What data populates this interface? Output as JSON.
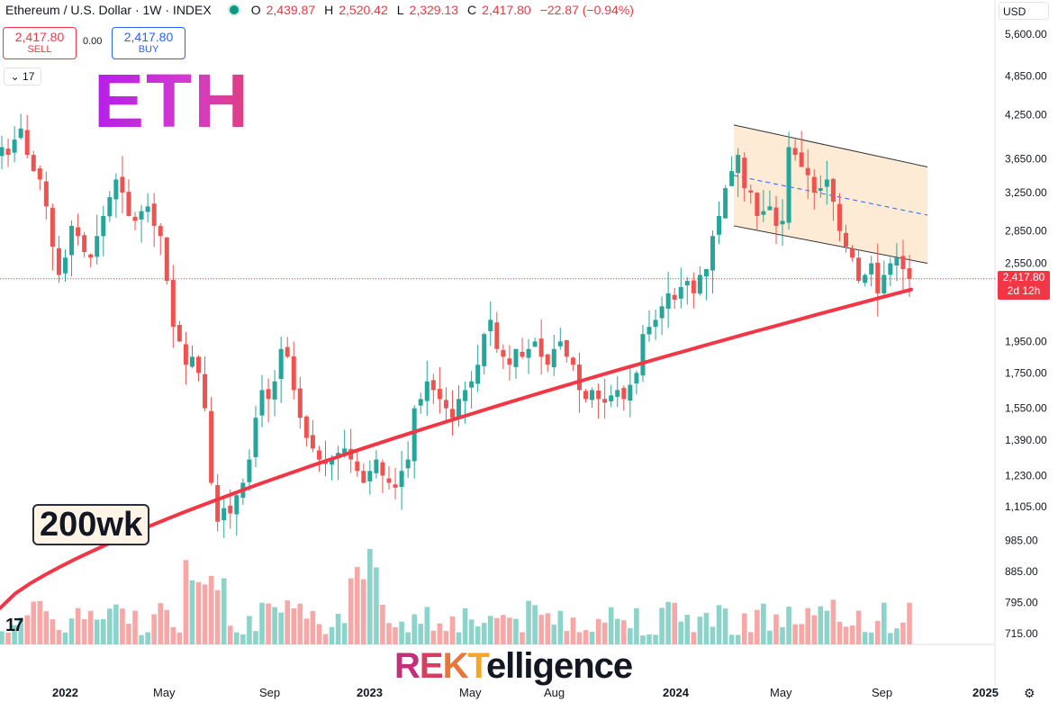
{
  "header": {
    "symbol": "Ethereum / U.S. Dollar · 1W · INDEX",
    "open_label": "O",
    "open_value": "2,439.87",
    "high_label": "H",
    "high_value": "2,520.42",
    "low_label": "L",
    "low_value": "2,329.13",
    "close_label": "C",
    "close_value": "2,417.80",
    "change": "−22.87 (−0.94%)"
  },
  "trade": {
    "sell_price": "2,417.80",
    "sell_label": "SELL",
    "spread": "0.00",
    "buy_price": "2,417.80",
    "buy_label": "BUY"
  },
  "collapse_count": "17",
  "overlay": {
    "eth_text": "ETH",
    "ma_label": "200wk",
    "brand_parts": [
      "R",
      "E",
      "K",
      "T"
    ],
    "brand_rest": "elligence",
    "tv_logo": "17"
  },
  "currency": "USD",
  "price_tag": {
    "price": "2,417.80",
    "countdown": "2d 12h"
  },
  "colors": {
    "up": "#26a69a",
    "down": "#ef5350",
    "ma": "#f23645",
    "volume_up": "#8cd3c9",
    "volume_down": "#f7a8a6",
    "channel": "#fde8cf",
    "accent": "#2962ff"
  },
  "chart_data": {
    "type": "candlestick",
    "interval": "1W",
    "scale": "log",
    "y_ticks": [
      5600,
      4850,
      4250,
      3650,
      3250,
      2850,
      2550,
      1950,
      1750,
      1550,
      1390,
      1230,
      1105,
      985,
      885,
      795,
      715
    ],
    "y_tick_labels": [
      "5,600.00",
      "4,850.00",
      "4,250.00",
      "3,650.00",
      "3,250.00",
      "2,850.00",
      "2,550.00",
      "1,950.00",
      "1,750.00",
      "1,550.00",
      "1,390.00",
      "1,230.00",
      "1,105.00",
      "985.00",
      "885.00",
      "795.00",
      "715.00"
    ],
    "x_labels": [
      "2022",
      "May",
      "Sep",
      "2023",
      "May",
      "Aug",
      "2024",
      "May",
      "Sep",
      "2025"
    ],
    "close_path": [
      3800,
      3700,
      3900,
      4050,
      3700,
      3500,
      3400,
      3100,
      2700,
      2450,
      2600,
      2900,
      2800,
      2650,
      2600,
      2800,
      3000,
      3200,
      3400,
      3250,
      3000,
      2950,
      3050,
      3100,
      2900,
      2800,
      2400,
      2050,
      1950,
      1800,
      1850,
      1750,
      1550,
      1200,
      1050,
      1100,
      1080,
      1150,
      1200,
      1300,
      1500,
      1650,
      1600,
      1700,
      1900,
      1850,
      1650,
      1500,
      1400,
      1350,
      1300,
      1280,
      1300,
      1330,
      1350,
      1300,
      1250,
      1200,
      1250,
      1300,
      1230,
      1200,
      1180,
      1250,
      1300,
      1550,
      1600,
      1700,
      1650,
      1600,
      1550,
      1500,
      1600,
      1650,
      1700,
      1800,
      2000,
      2100,
      1900,
      1850,
      1800,
      1900,
      1850,
      1900,
      1950,
      1850,
      1800,
      1900,
      1950,
      1850,
      1800,
      1650,
      1600,
      1650,
      1600,
      1580,
      1620,
      1650,
      1600,
      1680,
      1750,
      2000,
      2050,
      2100,
      2200,
      2300,
      2250,
      2350,
      2400,
      2300,
      2450,
      2500,
      2800,
      3000,
      3300,
      3500,
      3700,
      3300,
      3250,
      3000,
      3050,
      3100,
      2900,
      2950,
      3800,
      3700,
      3550,
      3450,
      3250,
      3300,
      3400,
      3150,
      2850,
      2700,
      2600,
      2400,
      2450,
      2550,
      2300,
      2450,
      2550,
      2600,
      2500,
      2417.8
    ],
    "series": [
      {
        "name": "ETHUSD",
        "type": "candlestick"
      },
      {
        "name": "200wk",
        "type": "line",
        "start": 780,
        "end": 2330
      },
      {
        "name": "Volume",
        "type": "bar"
      }
    ],
    "channel": {
      "upper_start": 4100,
      "upper_end": 3550,
      "lower_start": 2900,
      "lower_end": 2550
    },
    "last_price": 2417.8
  }
}
